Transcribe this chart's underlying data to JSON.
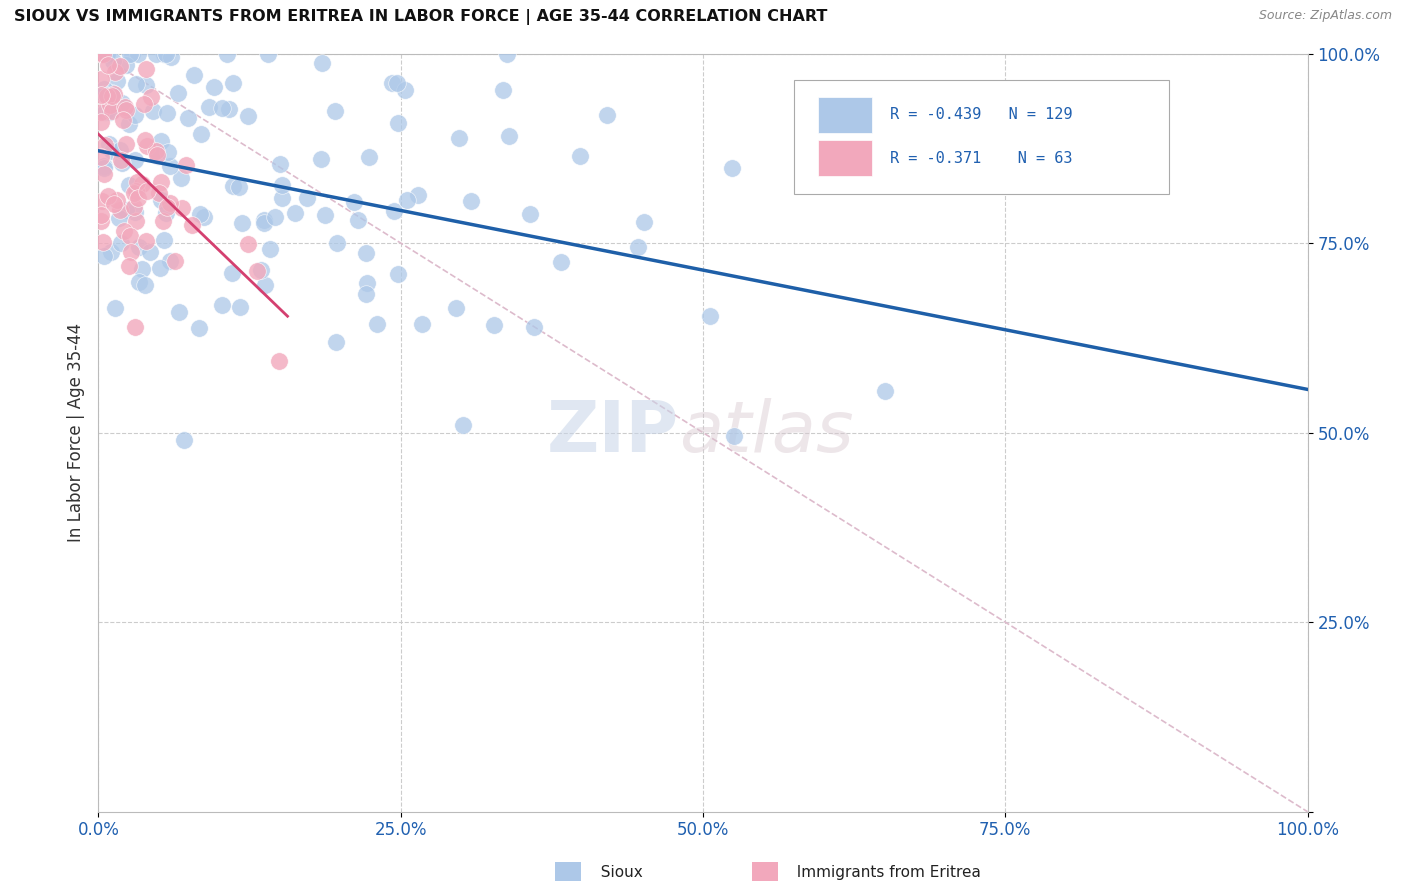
{
  "title": "SIOUX VS IMMIGRANTS FROM ERITREA IN LABOR FORCE | AGE 35-44 CORRELATION CHART",
  "source_text": "Source: ZipAtlas.com",
  "ylabel": "In Labor Force | Age 35-44",
  "xlim": [
    0.0,
    1.0
  ],
  "ylim": [
    0.0,
    1.0
  ],
  "x_ticks": [
    0.0,
    0.25,
    0.5,
    0.75,
    1.0
  ],
  "y_ticks": [
    0.0,
    0.25,
    0.5,
    0.75,
    1.0
  ],
  "x_tick_labels": [
    "0.0%",
    "25.0%",
    "50.0%",
    "75.0%",
    "100.0%"
  ],
  "y_tick_labels": [
    "",
    "25.0%",
    "50.0%",
    "75.0%",
    "100.0%"
  ],
  "legend_label1": "Sioux",
  "legend_label2": "Immigrants from Eritrea",
  "sioux_R": -0.439,
  "sioux_N": 129,
  "eritrea_R": -0.371,
  "eritrea_N": 63,
  "sioux_color": "#adc8e8",
  "eritrea_color": "#f2a8bc",
  "sioux_line_color": "#1e5fa8",
  "eritrea_line_color": "#d44070",
  "diagonal_color": "#ddbbcc",
  "grid_color": "#cccccc",
  "title_color": "#111111",
  "axis_label_color": "#333333",
  "tick_color": "#2060b0",
  "watermark_zip": "ZIP",
  "watermark_atlas": "atlas",
  "background_color": "#ffffff"
}
